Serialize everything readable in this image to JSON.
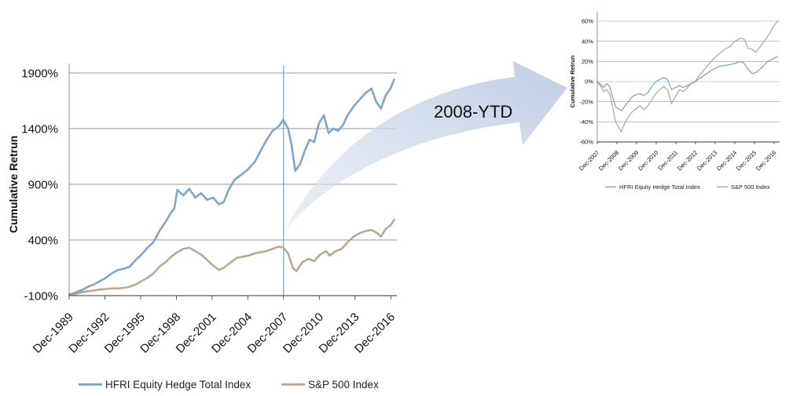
{
  "annotation": {
    "label": "2008-YTD"
  },
  "chart_data": [
    {
      "type": "line",
      "title": "",
      "xlabel": "",
      "ylabel": "Cumulative Retrun",
      "ylim": [
        -100,
        1900
      ],
      "yticks": [
        "-100%",
        "400%",
        "900%",
        "1400%",
        "1900%"
      ],
      "ytick_values": [
        -100,
        400,
        900,
        1400,
        1900
      ],
      "xtick_labels": [
        "Dec-1989",
        "Dec-1992",
        "Dec-1995",
        "Dec-1998",
        "Dec-2001",
        "Dec-2004",
        "Dec-2007",
        "Dec-2010",
        "Dec-2013",
        "Dec-2016"
      ],
      "xtick_years": [
        1989.92,
        1992.92,
        1995.92,
        1998.92,
        2001.92,
        2004.92,
        2007.92,
        2010.92,
        2013.92,
        2016.92
      ],
      "xlim": [
        1989.92,
        2017.3
      ],
      "marker_line_x": 2007.92,
      "grid": true,
      "legend_position": "bottom",
      "series": [
        {
          "name": "HFRI Equity Hedge Total Index",
          "color": "#7ea6c9",
          "points": [
            [
              1989.92,
              -90
            ],
            [
              1990.5,
              -70
            ],
            [
              1991.0,
              -50
            ],
            [
              1991.5,
              -20
            ],
            [
              1992.0,
              0
            ],
            [
              1992.5,
              30
            ],
            [
              1993.0,
              60
            ],
            [
              1993.5,
              100
            ],
            [
              1994.0,
              130
            ],
            [
              1994.5,
              140
            ],
            [
              1995.0,
              160
            ],
            [
              1995.5,
              220
            ],
            [
              1996.0,
              270
            ],
            [
              1996.5,
              330
            ],
            [
              1997.0,
              380
            ],
            [
              1997.5,
              480
            ],
            [
              1998.0,
              560
            ],
            [
              1998.5,
              650
            ],
            [
              1998.75,
              680
            ],
            [
              1999.0,
              850
            ],
            [
              1999.5,
              800
            ],
            [
              2000.0,
              860
            ],
            [
              2000.5,
              780
            ],
            [
              2001.0,
              820
            ],
            [
              2001.5,
              760
            ],
            [
              2002.0,
              780
            ],
            [
              2002.5,
              720
            ],
            [
              2002.9,
              740
            ],
            [
              2003.3,
              850
            ],
            [
              2003.8,
              940
            ],
            [
              2004.3,
              980
            ],
            [
              2004.9,
              1030
            ],
            [
              2005.5,
              1100
            ],
            [
              2006.0,
              1200
            ],
            [
              2006.5,
              1300
            ],
            [
              2007.0,
              1380
            ],
            [
              2007.5,
              1420
            ],
            [
              2007.9,
              1480
            ],
            [
              2008.3,
              1400
            ],
            [
              2008.6,
              1250
            ],
            [
              2008.9,
              1020
            ],
            [
              2009.3,
              1080
            ],
            [
              2009.7,
              1200
            ],
            [
              2010.1,
              1300
            ],
            [
              2010.5,
              1280
            ],
            [
              2010.9,
              1450
            ],
            [
              2011.3,
              1520
            ],
            [
              2011.7,
              1360
            ],
            [
              2012.1,
              1400
            ],
            [
              2012.5,
              1380
            ],
            [
              2012.9,
              1430
            ],
            [
              2013.3,
              1520
            ],
            [
              2013.8,
              1600
            ],
            [
              2014.3,
              1660
            ],
            [
              2014.8,
              1720
            ],
            [
              2015.3,
              1760
            ],
            [
              2015.7,
              1640
            ],
            [
              2016.1,
              1580
            ],
            [
              2016.5,
              1700
            ],
            [
              2016.9,
              1760
            ],
            [
              2017.2,
              1840
            ]
          ]
        },
        {
          "name": "S&P 500 Index",
          "color": "#bba88f",
          "points": [
            [
              1989.92,
              -90
            ],
            [
              1990.5,
              -85
            ],
            [
              1991.0,
              -70
            ],
            [
              1991.5,
              -60
            ],
            [
              1992.0,
              -55
            ],
            [
              1992.5,
              -45
            ],
            [
              1993.0,
              -40
            ],
            [
              1993.5,
              -35
            ],
            [
              1994.0,
              -35
            ],
            [
              1994.5,
              -30
            ],
            [
              1995.0,
              -20
            ],
            [
              1995.5,
              0
            ],
            [
              1996.0,
              30
            ],
            [
              1996.5,
              60
            ],
            [
              1997.0,
              100
            ],
            [
              1997.5,
              160
            ],
            [
              1998.0,
              200
            ],
            [
              1998.5,
              250
            ],
            [
              1999.0,
              290
            ],
            [
              1999.5,
              320
            ],
            [
              2000.0,
              330
            ],
            [
              2000.5,
              300
            ],
            [
              2001.0,
              270
            ],
            [
              2001.5,
              220
            ],
            [
              2002.0,
              170
            ],
            [
              2002.5,
              130
            ],
            [
              2002.9,
              150
            ],
            [
              2003.5,
              200
            ],
            [
              2004.0,
              240
            ],
            [
              2004.5,
              250
            ],
            [
              2005.0,
              260
            ],
            [
              2005.5,
              280
            ],
            [
              2006.0,
              290
            ],
            [
              2006.5,
              300
            ],
            [
              2007.0,
              320
            ],
            [
              2007.5,
              340
            ],
            [
              2007.9,
              330
            ],
            [
              2008.3,
              280
            ],
            [
              2008.7,
              150
            ],
            [
              2009.0,
              120
            ],
            [
              2009.5,
              200
            ],
            [
              2010.0,
              230
            ],
            [
              2010.5,
              210
            ],
            [
              2011.0,
              270
            ],
            [
              2011.5,
              300
            ],
            [
              2011.8,
              260
            ],
            [
              2012.3,
              300
            ],
            [
              2012.8,
              320
            ],
            [
              2013.3,
              380
            ],
            [
              2013.8,
              430
            ],
            [
              2014.3,
              460
            ],
            [
              2014.8,
              480
            ],
            [
              2015.3,
              490
            ],
            [
              2015.8,
              460
            ],
            [
              2016.1,
              430
            ],
            [
              2016.5,
              500
            ],
            [
              2016.9,
              530
            ],
            [
              2017.2,
              580
            ]
          ]
        }
      ]
    },
    {
      "type": "line",
      "title": "",
      "xlabel": "",
      "ylabel": "Cumulative Retrun",
      "ylim": [
        -60,
        60
      ],
      "yticks": [
        "-60%",
        "-40%",
        "-20%",
        "0%",
        "20%",
        "40%",
        "60%"
      ],
      "ytick_values": [
        -60,
        -40,
        -20,
        0,
        20,
        40,
        60
      ],
      "xtick_labels": [
        "Dec-2007",
        "Dec-2008",
        "Dec-2009",
        "Dec-2010",
        "Dec-2011",
        "Dec-2012",
        "Dec-2013",
        "Dec-2014",
        "Dec-2015",
        "Dec-2016"
      ],
      "xtick_years": [
        2007.92,
        2008.92,
        2009.92,
        2010.92,
        2011.92,
        2012.92,
        2013.92,
        2014.92,
        2015.92,
        2016.92
      ],
      "xlim": [
        2007.92,
        2017.2
      ],
      "grid": true,
      "legend_position": "bottom",
      "series": [
        {
          "name": "HFRI Equity Hedge Total Index",
          "color": "#7ea6c9",
          "points": [
            [
              2007.92,
              0
            ],
            [
              2008.1,
              -3
            ],
            [
              2008.25,
              -6
            ],
            [
              2008.4,
              -2
            ],
            [
              2008.55,
              -5
            ],
            [
              2008.7,
              -15
            ],
            [
              2008.85,
              -25
            ],
            [
              2009.0,
              -27
            ],
            [
              2009.15,
              -29
            ],
            [
              2009.3,
              -25
            ],
            [
              2009.5,
              -20
            ],
            [
              2009.7,
              -15
            ],
            [
              2009.9,
              -13
            ],
            [
              2010.1,
              -12
            ],
            [
              2010.3,
              -14
            ],
            [
              2010.5,
              -11
            ],
            [
              2010.7,
              -5
            ],
            [
              2010.9,
              0
            ],
            [
              2011.1,
              2
            ],
            [
              2011.3,
              4
            ],
            [
              2011.5,
              2
            ],
            [
              2011.7,
              -8
            ],
            [
              2011.9,
              -6
            ],
            [
              2012.1,
              -4
            ],
            [
              2012.3,
              -6
            ],
            [
              2012.5,
              -4
            ],
            [
              2012.7,
              -2
            ],
            [
              2012.9,
              0
            ],
            [
              2013.2,
              4
            ],
            [
              2013.5,
              8
            ],
            [
              2013.8,
              12
            ],
            [
              2014.1,
              15
            ],
            [
              2014.4,
              16
            ],
            [
              2014.7,
              17
            ],
            [
              2014.92,
              18
            ],
            [
              2015.2,
              20
            ],
            [
              2015.4,
              18
            ],
            [
              2015.6,
              12
            ],
            [
              2015.8,
              8
            ],
            [
              2016.0,
              9
            ],
            [
              2016.3,
              14
            ],
            [
              2016.6,
              20
            ],
            [
              2016.9,
              23
            ],
            [
              2017.1,
              25
            ]
          ]
        },
        {
          "name": "S&P 500 Index",
          "color": "#bba88f",
          "points": [
            [
              2007.92,
              0
            ],
            [
              2008.1,
              -5
            ],
            [
              2008.25,
              -10
            ],
            [
              2008.4,
              -8
            ],
            [
              2008.55,
              -12
            ],
            [
              2008.7,
              -25
            ],
            [
              2008.85,
              -40
            ],
            [
              2009.0,
              -45
            ],
            [
              2009.15,
              -50
            ],
            [
              2009.3,
              -42
            ],
            [
              2009.5,
              -35
            ],
            [
              2009.7,
              -30
            ],
            [
              2009.9,
              -27
            ],
            [
              2010.1,
              -24
            ],
            [
              2010.3,
              -28
            ],
            [
              2010.5,
              -24
            ],
            [
              2010.7,
              -18
            ],
            [
              2010.9,
              -12
            ],
            [
              2011.1,
              -8
            ],
            [
              2011.3,
              -5
            ],
            [
              2011.5,
              -8
            ],
            [
              2011.7,
              -22
            ],
            [
              2011.9,
              -15
            ],
            [
              2012.1,
              -8
            ],
            [
              2012.3,
              -10
            ],
            [
              2012.5,
              -6
            ],
            [
              2012.7,
              -2
            ],
            [
              2012.9,
              0
            ],
            [
              2013.2,
              8
            ],
            [
              2013.5,
              15
            ],
            [
              2013.8,
              22
            ],
            [
              2014.1,
              27
            ],
            [
              2014.4,
              32
            ],
            [
              2014.7,
              35
            ],
            [
              2014.92,
              40
            ],
            [
              2015.2,
              43
            ],
            [
              2015.4,
              42
            ],
            [
              2015.6,
              33
            ],
            [
              2015.8,
              32
            ],
            [
              2016.0,
              29
            ],
            [
              2016.3,
              37
            ],
            [
              2016.6,
              45
            ],
            [
              2016.9,
              55
            ],
            [
              2017.1,
              60
            ]
          ]
        }
      ]
    }
  ]
}
